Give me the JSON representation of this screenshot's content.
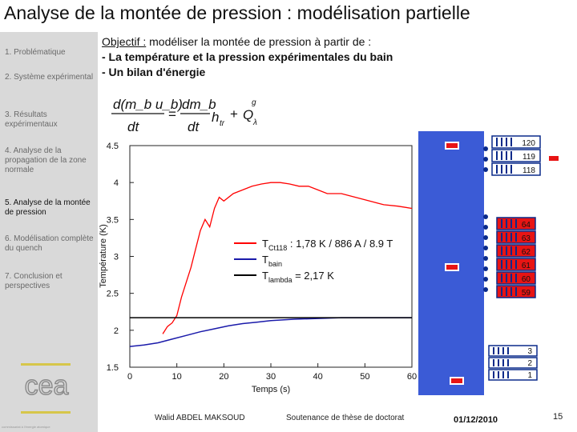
{
  "slide_title": "Analyse de la montée de pression : modélisation partielle",
  "sidebar": {
    "items": [
      {
        "label": "1. Problématique",
        "active": false
      },
      {
        "label": "2. Système expérimental",
        "active": false
      },
      {
        "label": "3. Résultats expérimentaux",
        "active": false
      },
      {
        "label": "4. Analyse de la propagation de la zone normale",
        "active": false
      },
      {
        "label": "5. Analyse de la montée de pression",
        "active": true
      },
      {
        "label": "6. Modélisation complète du quench",
        "active": false
      },
      {
        "label": "7. Conclusion et perspectives",
        "active": false
      }
    ],
    "logo_text": "cea",
    "footer_text": "commissariat à l'énergie atomique"
  },
  "objective": {
    "label": "Objectif :",
    "text": " modéliser la montée de pression à partir de :",
    "bullets": [
      "- La température et la pression expérimentales du bain",
      "- Un bilan d'énergie"
    ]
  },
  "formula": {
    "lhs_num": "d(m_b u_b)",
    "lhs_den": "dt",
    "rhs_num": "dm_b",
    "rhs_den": "dt",
    "h_term": "h",
    "h_sub": "tr",
    "q_term": "Q",
    "q_sub": "λ",
    "q_sup": "g"
  },
  "footer": {
    "author": "Walid ABDEL MAKSOUD",
    "event": "Soutenance de thèse de doctorat",
    "date": "01/12/2010",
    "page": "15"
  },
  "chart_data": {
    "type": "line",
    "xlabel": "Temps (s)",
    "ylabel": "Température (K)",
    "xlim": [
      0,
      60
    ],
    "ylim": [
      1.5,
      4.5
    ],
    "x_ticks": [
      "0",
      "10",
      "20",
      "30",
      "40",
      "50",
      "60"
    ],
    "y_ticks": [
      "1.5",
      "2",
      "2.5",
      "3",
      "3.5",
      "4",
      "4.5"
    ],
    "grid": false,
    "legend_placement": "center-right",
    "series": [
      {
        "name": "T_Ct118 : 1,78 K / 886 A / 8.9 T",
        "label_main": "T",
        "label_sub": "Ct118",
        "label_rest": " : 1,78 K / 886 A / 8.9 T",
        "color": "#ff0000",
        "x": [
          7,
          8,
          9,
          10,
          11,
          12,
          13,
          14,
          15,
          16,
          17,
          18,
          19,
          20,
          22,
          24,
          26,
          28,
          30,
          32,
          34,
          36,
          38,
          40,
          42,
          45,
          48,
          51,
          54,
          57,
          60
        ],
        "y": [
          1.95,
          2.05,
          2.1,
          2.2,
          2.45,
          2.65,
          2.85,
          3.1,
          3.35,
          3.5,
          3.4,
          3.65,
          3.8,
          3.75,
          3.85,
          3.9,
          3.95,
          3.98,
          4.0,
          4.0,
          3.98,
          3.95,
          3.95,
          3.9,
          3.85,
          3.85,
          3.8,
          3.75,
          3.7,
          3.68,
          3.65
        ]
      },
      {
        "name": "T_bain",
        "label_main": "T",
        "label_sub": "bain",
        "label_rest": "",
        "color": "#1a1aaa",
        "x": [
          0,
          3,
          6,
          9,
          12,
          15,
          18,
          21,
          24,
          27,
          30,
          35,
          40,
          45,
          50,
          55,
          60
        ],
        "y": [
          1.78,
          1.8,
          1.83,
          1.88,
          1.93,
          1.98,
          2.02,
          2.06,
          2.09,
          2.11,
          2.13,
          2.15,
          2.16,
          2.17,
          2.17,
          2.17,
          2.17
        ]
      },
      {
        "name": "T_lambda = 2,17 K",
        "label_main": "T",
        "label_sub": "lambda",
        "label_rest": " = 2,17 K",
        "color": "#000000",
        "x": [
          0,
          60
        ],
        "y": [
          2.17,
          2.17
        ]
      }
    ]
  },
  "apparatus": {
    "top_labels": [
      "120",
      "119",
      "118"
    ],
    "middle_labels": [
      "64",
      "63",
      "62",
      "61",
      "60",
      "59"
    ],
    "bottom_labels": [
      "3",
      "2",
      "1"
    ],
    "colors": {
      "bath": "#3b5bd6",
      "pipe": "#ffffff",
      "sensor": "#e81414",
      "coil": "#0a2a8a"
    }
  }
}
